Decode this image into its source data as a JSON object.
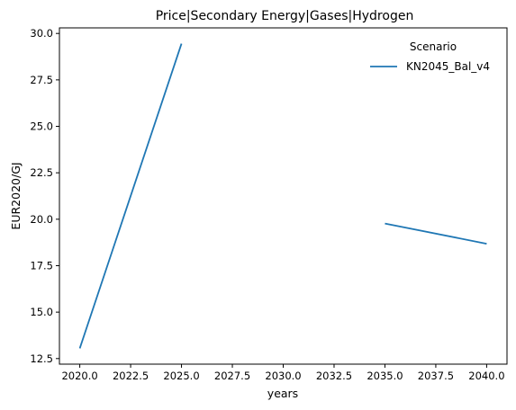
{
  "chart_data": {
    "type": "line",
    "title": "Price|Secondary Energy|Gases|Hydrogen",
    "xlabel": "years",
    "ylabel": "EUR2020/GJ",
    "xlim": [
      2019.0,
      2041.0
    ],
    "ylim": [
      12.2,
      30.3
    ],
    "x_ticks": [
      2020.0,
      2022.5,
      2025.0,
      2027.5,
      2030.0,
      2032.5,
      2035.0,
      2037.5,
      2040.0
    ],
    "x_tick_labels": [
      "2020.0",
      "2022.5",
      "2025.0",
      "2027.5",
      "2030.0",
      "2032.5",
      "2035.0",
      "2037.5",
      "2040.0"
    ],
    "y_ticks": [
      12.5,
      15.0,
      17.5,
      20.0,
      22.5,
      25.0,
      27.5,
      30.0
    ],
    "y_tick_labels": [
      "12.5",
      "15.0",
      "17.5",
      "20.0",
      "22.5",
      "25.0",
      "27.5",
      "30.0"
    ],
    "grid": false,
    "legend": {
      "title": "Scenario",
      "placement": "top-right"
    },
    "series": [
      {
        "name": "KN2045_Bal_v4",
        "color": "#1f77b4",
        "points": [
          {
            "x": 2020,
            "y": 13.05
          },
          {
            "x": 2025,
            "y": 29.45
          },
          {
            "x": 2030,
            "y": null
          },
          {
            "x": 2035,
            "y": 19.77
          },
          {
            "x": 2040,
            "y": 18.68
          }
        ]
      }
    ]
  }
}
